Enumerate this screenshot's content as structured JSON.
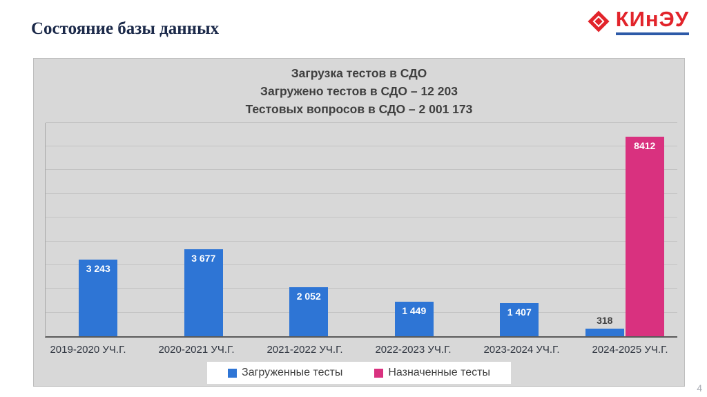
{
  "header": {
    "title": "Состояние базы данных",
    "logo_text": "КИнЭУ"
  },
  "footer": {
    "page_number": "4"
  },
  "colors": {
    "loaded_tests_blue": "#2e75d5",
    "assigned_tests_pink": "#d9317f",
    "logo_red": "#e2242b",
    "logo_underline_blue": "#2d5aa8"
  },
  "chart_data": {
    "type": "bar",
    "title": "Загрузка тестов в СДО",
    "subtitle_lines": [
      "Загружено тестов в СДО – 12 203",
      "Тестовых вопросов в СДО –  2 001 173"
    ],
    "categories": [
      "2019-2020 УЧ.Г.",
      "2020-2021 УЧ.Г.",
      "2021-2022 УЧ.Г.",
      "2022-2023 УЧ.Г.",
      "2023-2024 УЧ.Г.",
      "2024-2025 УЧ.Г."
    ],
    "series": [
      {
        "name": "Загруженные тесты",
        "color": "#2e75d5",
        "values": [
          3243,
          3677,
          2052,
          1449,
          1407,
          318
        ],
        "labels": [
          "3 243",
          "3 677",
          "2 052",
          "1 449",
          "1 407",
          "318"
        ]
      },
      {
        "name": "Назначенные тесты",
        "color": "#d9317f",
        "values": [
          null,
          null,
          null,
          null,
          null,
          8412
        ],
        "labels": [
          null,
          null,
          null,
          null,
          null,
          "8412"
        ]
      }
    ],
    "ylim": [
      0,
      9000
    ],
    "grid_step": 1000,
    "grid": true,
    "legend_position": "bottom"
  }
}
